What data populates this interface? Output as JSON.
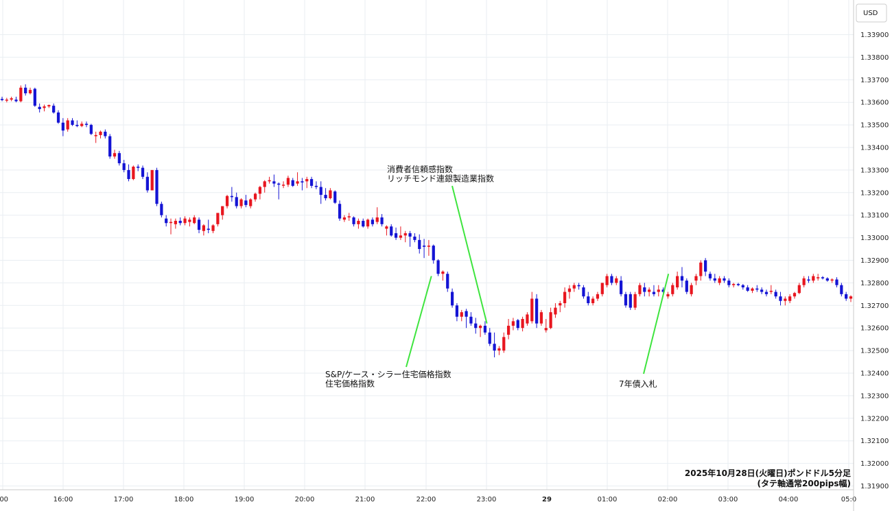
{
  "chart_data": {
    "type": "candlestick",
    "currency_label": "USD",
    "caption": [
      "2025年10月28日(火曜日)ポンドドル5分足",
      "(タテ軸通常200pips幅)"
    ],
    "ylim": [
      1.319,
      1.34
    ],
    "y_ticks": [
      "1.31900",
      "1.32000",
      "1.32100",
      "1.32200",
      "1.32300",
      "1.32400",
      "1.32500",
      "1.32600",
      "1.32700",
      "1.32800",
      "1.32900",
      "1.33000",
      "1.33100",
      "1.33200",
      "1.33300",
      "1.33400",
      "1.33500",
      "1.33600",
      "1.33700",
      "1.33800",
      "1.33900"
    ],
    "x_ticks": [
      ":00",
      "16:00",
      "17:00",
      "18:00",
      "19:00",
      "20:00",
      "21:00",
      "22:00",
      "23:00",
      "29",
      "01:00",
      "02:00",
      "03:00",
      "04:00",
      "05:0"
    ],
    "bold_x_tick": "29",
    "colors": {
      "up": "#e8161f",
      "down": "#1414d4",
      "grid": "#e9eef2",
      "annotation_line": "#3ee43e"
    },
    "candles": [
      [
        1.33615,
        1.33625,
        1.33605,
        1.3361
      ],
      [
        1.3361,
        1.3362,
        1.336,
        1.33612
      ],
      [
        1.33612,
        1.33625,
        1.33605,
        1.33618
      ],
      [
        1.33612,
        1.33625,
        1.336,
        1.33605
      ],
      [
        1.33605,
        1.33675,
        1.336,
        1.33665
      ],
      [
        1.33665,
        1.3368,
        1.3363,
        1.3364
      ],
      [
        1.3364,
        1.33665,
        1.33635,
        1.33655
      ],
      [
        1.3366,
        1.33665,
        1.3358,
        1.33585
      ],
      [
        1.3358,
        1.33595,
        1.33555,
        1.3357
      ],
      [
        1.33575,
        1.3359,
        1.3356,
        1.33582
      ],
      [
        1.33582,
        1.3359,
        1.33575,
        1.33588
      ],
      [
        1.33585,
        1.33595,
        1.3355,
        1.33555
      ],
      [
        1.33555,
        1.33565,
        1.33505,
        1.3351
      ],
      [
        1.3351,
        1.3353,
        1.3345,
        1.33475
      ],
      [
        1.3348,
        1.3353,
        1.3347,
        1.3352
      ],
      [
        1.3352,
        1.3353,
        1.33495,
        1.335
      ],
      [
        1.335,
        1.3352,
        1.3349,
        1.33495
      ],
      [
        1.33495,
        1.33515,
        1.3349,
        1.33505
      ],
      [
        1.33505,
        1.33515,
        1.3349,
        1.335
      ],
      [
        1.335,
        1.33505,
        1.33455,
        1.3346
      ],
      [
        1.3345,
        1.3347,
        1.3342,
        1.33455
      ],
      [
        1.33455,
        1.33475,
        1.3344,
        1.3347
      ],
      [
        1.3347,
        1.3348,
        1.3344,
        1.3345
      ],
      [
        1.3345,
        1.3346,
        1.3335,
        1.3336
      ],
      [
        1.3336,
        1.3339,
        1.3335,
        1.33375
      ],
      [
        1.33375,
        1.33385,
        1.3332,
        1.3333
      ],
      [
        1.3333,
        1.33345,
        1.3329,
        1.333
      ],
      [
        1.333,
        1.33325,
        1.3325,
        1.3326
      ],
      [
        1.3326,
        1.3332,
        1.33255,
        1.33315
      ],
      [
        1.33315,
        1.33325,
        1.33295,
        1.3331
      ],
      [
        1.3331,
        1.3332,
        1.3326,
        1.3327
      ],
      [
        1.3327,
        1.3329,
        1.332,
        1.3321
      ],
      [
        1.3321,
        1.333,
        1.3321,
        1.333
      ],
      [
        1.333,
        1.3331,
        1.3314,
        1.3315
      ],
      [
        1.3315,
        1.3316,
        1.3309,
        1.331
      ],
      [
        1.33085,
        1.331,
        1.3305,
        1.33065
      ],
      [
        1.33065,
        1.33085,
        1.33015,
        1.3307
      ],
      [
        1.3306,
        1.33085,
        1.3304,
        1.33075
      ],
      [
        1.33075,
        1.3309,
        1.33055,
        1.33065
      ],
      [
        1.33065,
        1.33095,
        1.33055,
        1.33085
      ],
      [
        1.3307,
        1.3309,
        1.3305,
        1.3308
      ],
      [
        1.33065,
        1.331,
        1.3306,
        1.3309
      ],
      [
        1.3308,
        1.3309,
        1.3302,
        1.33035
      ],
      [
        1.3303,
        1.3306,
        1.3301,
        1.33055
      ],
      [
        1.3304,
        1.3308,
        1.3302,
        1.33035
      ],
      [
        1.3303,
        1.3306,
        1.3302,
        1.33055
      ],
      [
        1.3306,
        1.331,
        1.3305,
        1.3311
      ],
      [
        1.331,
        1.3314,
        1.3308,
        1.3314
      ],
      [
        1.3314,
        1.3319,
        1.3313,
        1.33185
      ],
      [
        1.33185,
        1.33225,
        1.3316,
        1.3318
      ],
      [
        1.3318,
        1.332,
        1.3313,
        1.3314
      ],
      [
        1.3314,
        1.33175,
        1.3313,
        1.3317
      ],
      [
        1.33165,
        1.3319,
        1.33135,
        1.33145
      ],
      [
        1.3314,
        1.33175,
        1.3313,
        1.3317
      ],
      [
        1.3317,
        1.332,
        1.3316,
        1.33195
      ],
      [
        1.33195,
        1.3323,
        1.3317,
        1.33225
      ],
      [
        1.33225,
        1.33255,
        1.332,
        1.3325
      ],
      [
        1.3325,
        1.3327,
        1.3324,
        1.33255
      ],
      [
        1.3325,
        1.3328,
        1.33225,
        1.3324
      ],
      [
        1.3324,
        1.33245,
        1.3317,
        1.33235
      ],
      [
        1.33235,
        1.3325,
        1.3322,
        1.33235
      ],
      [
        1.33235,
        1.33275,
        1.33225,
        1.33265
      ],
      [
        1.33255,
        1.33265,
        1.33225,
        1.3323
      ],
      [
        1.3324,
        1.3329,
        1.3323,
        1.3325
      ],
      [
        1.3325,
        1.33265,
        1.3321,
        1.33245
      ],
      [
        1.3325,
        1.3327,
        1.3322,
        1.3326
      ],
      [
        1.3326,
        1.3327,
        1.3322,
        1.3323
      ],
      [
        1.3323,
        1.3325,
        1.33215,
        1.33225
      ],
      [
        1.33225,
        1.3325,
        1.3315,
        1.3319
      ],
      [
        1.3319,
        1.3322,
        1.33165,
        1.33175
      ],
      [
        1.33175,
        1.3322,
        1.3317,
        1.3321
      ],
      [
        1.33205,
        1.3321,
        1.3315,
        1.33155
      ],
      [
        1.3315,
        1.33165,
        1.33075,
        1.33085
      ],
      [
        1.3308,
        1.331,
        1.3307,
        1.3309
      ],
      [
        1.3309,
        1.3311,
        1.33075,
        1.33095
      ],
      [
        1.3309,
        1.33095,
        1.3305,
        1.3306
      ],
      [
        1.3306,
        1.33085,
        1.3304,
        1.33075
      ],
      [
        1.33075,
        1.33085,
        1.33045,
        1.3305
      ],
      [
        1.3305,
        1.33085,
        1.3304,
        1.3308
      ],
      [
        1.3308,
        1.3309,
        1.3305,
        1.3306
      ],
      [
        1.3307,
        1.33135,
        1.3306,
        1.3309
      ],
      [
        1.3309,
        1.33105,
        1.3305,
        1.3306
      ],
      [
        1.3304,
        1.33055,
        1.3301,
        1.3305
      ],
      [
        1.3305,
        1.3306,
        1.33005,
        1.3301
      ],
      [
        1.3302,
        1.33045,
        1.3299,
        1.33
      ],
      [
        1.33,
        1.3305,
        1.3299,
        1.3301
      ],
      [
        1.3301,
        1.3303,
        1.3298,
        1.3302
      ],
      [
        1.3302,
        1.3303,
        1.3296,
        1.33005
      ],
      [
        1.33005,
        1.3302,
        1.3298,
        1.3299
      ],
      [
        1.3299,
        1.33015,
        1.3293,
        1.3295
      ],
      [
        1.32965,
        1.32995,
        1.3291,
        1.3296
      ],
      [
        1.3296,
        1.3299,
        1.3292,
        1.32965
      ],
      [
        1.32965,
        1.3297,
        1.32885,
        1.329
      ],
      [
        1.329,
        1.32905,
        1.3283,
        1.3284
      ],
      [
        1.3284,
        1.32855,
        1.3281,
        1.3285
      ],
      [
        1.3284,
        1.3285,
        1.3276,
        1.32775
      ],
      [
        1.3276,
        1.32775,
        1.3269,
        1.327
      ],
      [
        1.327,
        1.3271,
        1.3263,
        1.3265
      ],
      [
        1.3265,
        1.3268,
        1.3263,
        1.3267
      ],
      [
        1.32675,
        1.32685,
        1.326,
        1.3265
      ],
      [
        1.3265,
        1.3267,
        1.3261,
        1.3262
      ],
      [
        1.3262,
        1.32645,
        1.32575,
        1.326
      ],
      [
        1.326,
        1.32615,
        1.3256,
        1.3261
      ],
      [
        1.3261,
        1.3263,
        1.3257,
        1.3258
      ],
      [
        1.3258,
        1.326,
        1.3252,
        1.3253
      ],
      [
        1.3253,
        1.3258,
        1.3247,
        1.325
      ],
      [
        1.325,
        1.3252,
        1.3248,
        1.3251
      ],
      [
        1.325,
        1.3258,
        1.3249,
        1.3256
      ],
      [
        1.3257,
        1.3264,
        1.3255,
        1.3261
      ],
      [
        1.3261,
        1.32645,
        1.3259,
        1.3263
      ],
      [
        1.32635,
        1.3264,
        1.3259,
        1.326
      ],
      [
        1.326,
        1.3265,
        1.32585,
        1.3264
      ],
      [
        1.3262,
        1.3267,
        1.3261,
        1.3266
      ],
      [
        1.3263,
        1.3276,
        1.3262,
        1.3273
      ],
      [
        1.3273,
        1.3275,
        1.326,
        1.3262
      ],
      [
        1.3262,
        1.3268,
        1.3261,
        1.3267
      ],
      [
        1.3259,
        1.3264,
        1.3258,
        1.326
      ],
      [
        1.326,
        1.3269,
        1.32595,
        1.3267
      ],
      [
        1.3266,
        1.3271,
        1.32645,
        1.3269
      ],
      [
        1.327,
        1.3272,
        1.3267,
        1.3271
      ],
      [
        1.3271,
        1.3278,
        1.3269,
        1.3276
      ],
      [
        1.3276,
        1.3279,
        1.3273,
        1.32775
      ],
      [
        1.32775,
        1.328,
        1.3276,
        1.3279
      ],
      [
        1.3279,
        1.328,
        1.3277,
        1.32785
      ],
      [
        1.3278,
        1.3279,
        1.3273,
        1.3274
      ],
      [
        1.3274,
        1.3276,
        1.327,
        1.3271
      ],
      [
        1.3271,
        1.3274,
        1.327,
        1.3273
      ],
      [
        1.3273,
        1.3276,
        1.3272,
        1.3275
      ],
      [
        1.3275,
        1.328,
        1.3274,
        1.328
      ],
      [
        1.3279,
        1.3284,
        1.3278,
        1.3283
      ],
      [
        1.3283,
        1.3284,
        1.3279,
        1.328
      ],
      [
        1.328,
        1.3283,
        1.3279,
        1.3282
      ],
      [
        1.3281,
        1.3283,
        1.3274,
        1.3275
      ],
      [
        1.3275,
        1.3276,
        1.3269,
        1.327
      ],
      [
        1.3275,
        1.3276,
        1.3268,
        1.3269
      ],
      [
        1.3269,
        1.3276,
        1.3268,
        1.3275
      ],
      [
        1.3275,
        1.328,
        1.3274,
        1.3279
      ],
      [
        1.3278,
        1.328,
        1.3274,
        1.3276
      ],
      [
        1.3276,
        1.3278,
        1.3274,
        1.3277
      ],
      [
        1.3276,
        1.3279,
        1.3274,
        1.3275
      ],
      [
        1.3276,
        1.3279,
        1.3274,
        1.3277
      ],
      [
        1.3277,
        1.3278,
        1.3275,
        1.3276
      ],
      [
        1.3274,
        1.3276,
        1.3273,
        1.3275
      ],
      [
        1.3275,
        1.328,
        1.3274,
        1.3279
      ],
      [
        1.3278,
        1.3285,
        1.3277,
        1.3283
      ],
      [
        1.3283,
        1.3287,
        1.3278,
        1.3281
      ],
      [
        1.3281,
        1.3282,
        1.3275,
        1.3276
      ],
      [
        1.3275,
        1.328,
        1.3274,
        1.3279
      ],
      [
        1.3281,
        1.3284,
        1.3279,
        1.3283
      ],
      [
        1.3283,
        1.329,
        1.3281,
        1.3289
      ],
      [
        1.329,
        1.3291,
        1.3283,
        1.3285
      ],
      [
        1.3284,
        1.3285,
        1.3281,
        1.3282
      ],
      [
        1.3282,
        1.3284,
        1.328,
        1.3281
      ],
      [
        1.328,
        1.3283,
        1.3279,
        1.3282
      ],
      [
        1.3282,
        1.3283,
        1.328,
        1.3281
      ],
      [
        1.3281,
        1.3282,
        1.3278,
        1.3279
      ],
      [
        1.3279,
        1.328,
        1.3278,
        1.32795
      ],
      [
        1.32795,
        1.328,
        1.32785,
        1.3279
      ],
      [
        1.3279,
        1.32795,
        1.3277,
        1.3278
      ],
      [
        1.3278,
        1.3279,
        1.3276,
        1.32765
      ],
      [
        1.32765,
        1.3278,
        1.32755,
        1.32775
      ],
      [
        1.32775,
        1.3279,
        1.3276,
        1.3277
      ],
      [
        1.3277,
        1.3278,
        1.3275,
        1.3276
      ],
      [
        1.3276,
        1.3277,
        1.3274,
        1.3275
      ],
      [
        1.3276,
        1.3279,
        1.3275,
        1.32765
      ],
      [
        1.3276,
        1.3277,
        1.3273,
        1.3274
      ],
      [
        1.3274,
        1.3276,
        1.327,
        1.3272
      ],
      [
        1.3272,
        1.3274,
        1.327,
        1.3273
      ],
      [
        1.3272,
        1.3275,
        1.3271,
        1.3274
      ],
      [
        1.3274,
        1.3276,
        1.3273,
        1.32755
      ],
      [
        1.32755,
        1.328,
        1.3275,
        1.3279
      ],
      [
        1.3279,
        1.3283,
        1.3278,
        1.3282
      ],
      [
        1.32815,
        1.3283,
        1.328,
        1.3281
      ],
      [
        1.3281,
        1.3284,
        1.328,
        1.3283
      ],
      [
        1.3282,
        1.3284,
        1.3281,
        1.32825
      ],
      [
        1.32825,
        1.3283,
        1.32815,
        1.3282
      ],
      [
        1.3282,
        1.32825,
        1.32805,
        1.3281
      ],
      [
        1.3281,
        1.3282,
        1.328,
        1.32815
      ],
      [
        1.32815,
        1.32825,
        1.3278,
        1.3279
      ],
      [
        1.3279,
        1.328,
        1.3274,
        1.3275
      ],
      [
        1.3275,
        1.3276,
        1.3272,
        1.3273
      ],
      [
        1.3273,
        1.32745,
        1.32715,
        1.3274
      ]
    ],
    "annotations": [
      {
        "lines": [
          "消費者信頼感指数",
          "リッチモンド連銀製造業指数"
        ],
        "x_label_time": 22.5,
        "x_point_time": 23.0,
        "y_point": 1.3262
      },
      {
        "lines": [
          "S&P/ケース・シラー住宅価格指数",
          "住宅価格指数"
        ],
        "x_label_time": 21.625,
        "x_point_time": 22.083,
        "y_point": 1.3283
      },
      {
        "lines": [
          "7年債入札"
        ],
        "x_label_time": 25.3,
        "x_point_time": 26.0,
        "y_point": 1.3284
      }
    ]
  }
}
